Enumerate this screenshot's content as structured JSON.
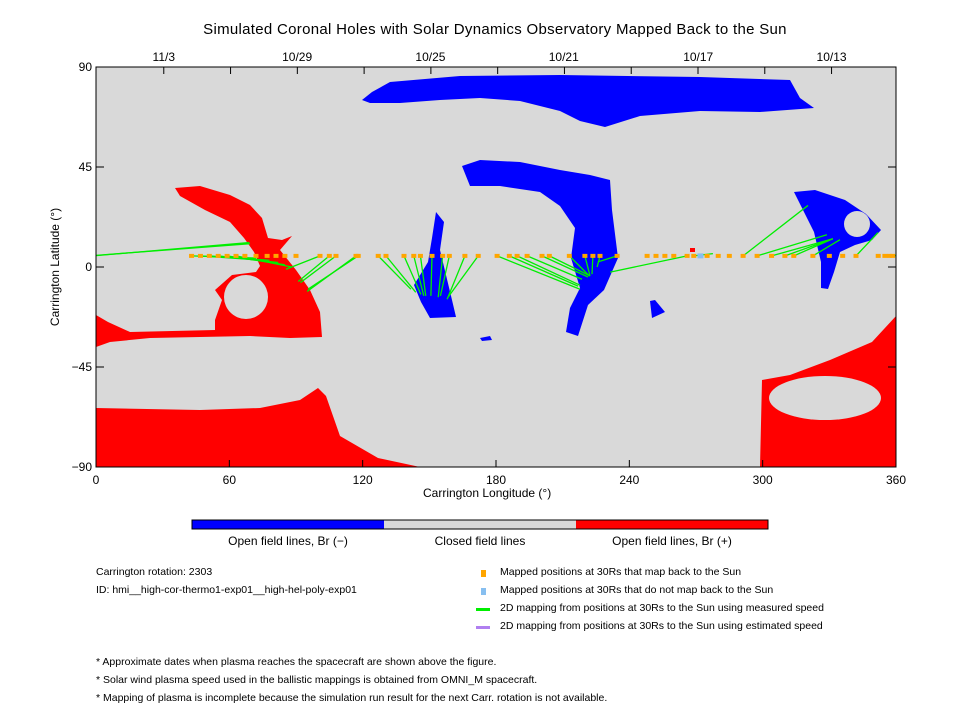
{
  "chart_data": {
    "type": "map",
    "title": "Simulated Coronal Holes with Solar Dynamics Observatory Mapped Back to the Sun",
    "xlabel": "Carrington Longitude (°)",
    "ylabel": "Carrington Latitude (°)",
    "xlim": [
      0,
      360
    ],
    "ylim": [
      -90,
      90
    ],
    "xticks": [
      "0",
      "60",
      "120",
      "180",
      "240",
      "300",
      "360"
    ],
    "yticks": [
      "90",
      "45",
      "0",
      "−45",
      "−90"
    ],
    "top_axis_dates": [
      {
        "label": "11/3",
        "lon": 30.5
      },
      {
        "label": "10/29",
        "lon": 90.5
      },
      {
        "label": "10/25",
        "lon": 150.5
      },
      {
        "label": "10/21",
        "lon": 210.5
      },
      {
        "label": "10/17",
        "lon": 271
      },
      {
        "label": "10/13",
        "lon": 331
      }
    ],
    "colors": {
      "open_negative": "#0000ff",
      "closed": "#d9d9d9",
      "open_positive": "#ff0000",
      "mapped": "#ffa500",
      "not_mapped": "#87bff0",
      "measured_speed": "#00ee00",
      "estimated_speed": "#b07ff0"
    },
    "colorbar_labels": [
      "Open field lines, Br (−)",
      "Closed field lines",
      "Open field lines, Br (+)"
    ],
    "mapped_positions_lat": 5,
    "mappings": [
      {
        "lon": 43,
        "foot": [
          72,
          4
        ]
      },
      {
        "lon": 47,
        "foot": [
          75,
          3
        ]
      },
      {
        "lon": 51,
        "foot": [
          78,
          3
        ]
      },
      {
        "lon": 55,
        "foot": [
          82,
          2
        ]
      },
      {
        "lon": 59,
        "foot": [
          85,
          1
        ]
      },
      {
        "lon": 63,
        "foot": [
          88,
          0
        ]
      },
      {
        "lon": 67
      },
      {
        "lon": 72
      },
      {
        "lon": 77
      },
      {
        "lon": 81
      },
      {
        "lon": 85
      },
      {
        "lon": 90
      },
      {
        "lon": 100.8,
        "foot": [
          85.5,
          -1
        ]
      },
      {
        "lon": 105,
        "foot": [
          91,
          -6.5
        ]
      },
      {
        "lon": 108,
        "foot": [
          92,
          -7
        ]
      },
      {
        "lon": 117,
        "foot": [
          95,
          -11
        ]
      },
      {
        "lon": 118,
        "foot": [
          95.4,
          -10
        ]
      },
      {
        "lon": 127,
        "foot": [
          141.7,
          -10
        ]
      },
      {
        "lon": 130.5,
        "foot": [
          143.9,
          -11.4
        ]
      },
      {
        "lon": 138.6,
        "foot": [
          146.2,
          -12.3
        ]
      },
      {
        "lon": 143,
        "foot": [
          147.5,
          -13
        ]
      },
      {
        "lon": 146,
        "foot": [
          148.4,
          -13
        ]
      },
      {
        "lon": 151.2,
        "foot": [
          150.7,
          -13
        ]
      },
      {
        "lon": 156,
        "foot": [
          154,
          -13.6
        ]
      },
      {
        "lon": 159,
        "foot": [
          155,
          -13
        ]
      },
      {
        "lon": 166,
        "foot": [
          158,
          -14.5
        ]
      },
      {
        "lon": 172,
        "foot": [
          158.4,
          -13.6
        ]
      },
      {
        "lon": 180.5,
        "foot": [
          217.8,
          -10
        ]
      },
      {
        "lon": 186,
        "foot": [
          216.9,
          -8.6
        ]
      },
      {
        "lon": 189.5,
        "foot": [
          217.8,
          -8.2
        ]
      },
      {
        "lon": 194,
        "foot": [
          218.7,
          -5.5
        ]
      },
      {
        "lon": 200.7,
        "foot": [
          221.4,
          -4.5
        ]
      },
      {
        "lon": 204,
        "foot": [
          222.3,
          -4
        ]
      },
      {
        "lon": 213,
        "foot": [
          222,
          -4
        ]
      },
      {
        "lon": 220,
        "foot": [
          222.3,
          -4
        ]
      },
      {
        "lon": 223.6,
        "foot": [
          223.2,
          -3.2
        ]
      },
      {
        "lon": 226.8,
        "foot": [
          225.5,
          0
        ]
      },
      {
        "lon": 234.5,
        "foot": [
          225.9,
          2.3
        ]
      },
      {
        "lon": 248
      },
      {
        "lon": 252
      },
      {
        "lon": 256
      },
      {
        "lon": 260
      },
      {
        "lon": 266,
        "foot": [
          231.4,
          -2.3
        ]
      },
      {
        "lon": 269,
        "foot": [
          277.6,
          6
        ]
      },
      {
        "lon": 275
      },
      {
        "lon": 280
      },
      {
        "lon": 285
      },
      {
        "lon": 291.2,
        "foot": [
          320.4,
          27.7
        ]
      },
      {
        "lon": 297.5,
        "foot": [
          328.9,
          14.5
        ]
      },
      {
        "lon": 304,
        "foot": [
          331.6,
          12.7
        ]
      },
      {
        "lon": 310,
        "foot": [
          331.6,
          12.7
        ]
      },
      {
        "lon": 314,
        "foot": [
          331.6,
          12.7
        ]
      },
      {
        "lon": 322.6,
        "foot": [
          334.8,
          12.3
        ]
      },
      {
        "lon": 330
      },
      {
        "lon": 336
      },
      {
        "lon": 342,
        "foot": [
          351.9,
          15.5
        ]
      },
      {
        "lon": 352
      },
      {
        "lon": 355
      },
      {
        "lon": 357,
        "foot": [
          69.3,
          10.5
        ]
      },
      {
        "lon": 358.5,
        "foot": [
          69,
          11
        ]
      }
    ],
    "unmapped_positions": [
      {
        "lon": 272
      }
    ]
  },
  "info": {
    "rotation": "Carrington rotation: 2303",
    "id": "ID: hmi__high-cor-thermo1-exp01__high-hel-poly-exp01"
  },
  "legend": [
    {
      "label": "Mapped positions at 30Rs that map back to the Sun",
      "kind": "square",
      "color": "#ffa500"
    },
    {
      "label": "Mapped positions at 30Rs that do not map back to the Sun",
      "kind": "square",
      "color": "#87bff0"
    },
    {
      "label": "2D mapping from positions at 30Rs to the Sun using measured speed",
      "kind": "line",
      "color": "#00ee00"
    },
    {
      "label": "2D mapping from positions at 30Rs to the Sun using estimated speed",
      "kind": "line",
      "color": "#b07ff0"
    }
  ],
  "notes": [
    "* Approximate dates when plasma reaches the spacecraft are shown above the figure.",
    "* Solar wind plasma speed used in the ballistic mappings is obtained from OMNI_M spacecraft.",
    "* Mapping of plasma is incomplete because the simulation run result for the next Carr. rotation is not available."
  ]
}
